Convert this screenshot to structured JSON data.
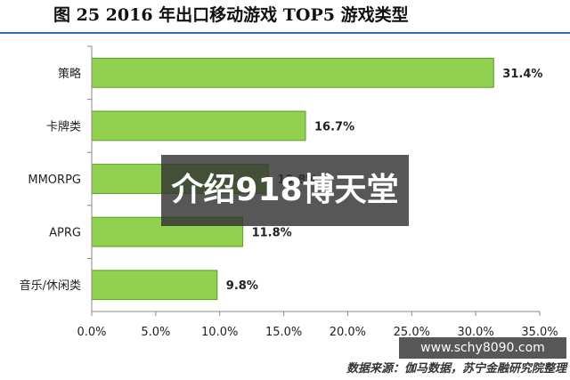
{
  "title": "图 25  2016 年出口移动游戏 TOP5 游戏类型",
  "watermark": "介绍918博天堂",
  "site_watermark": "www.schy8090.com",
  "source": "数据来源：伽马数据，苏宁金融研究院整理",
  "colors": {
    "bar_fill": "#92d050",
    "bar_stroke": "#5a9e22",
    "axis": "#888888",
    "title_rule": "#2f6fb0"
  },
  "chart_data": {
    "type": "bar",
    "orientation": "horizontal",
    "title": "图 25  2016 年出口移动游戏 TOP5 游戏类型",
    "categories": [
      "策略",
      "卡牌类",
      "MMORPG",
      "APRG",
      "音乐/休闲类"
    ],
    "values": [
      31.4,
      16.7,
      13.8,
      11.8,
      9.8
    ],
    "value_labels": [
      "31.4%",
      "16.7%",
      "13.8%",
      "11.8%",
      "9.8%"
    ],
    "xlim": [
      0,
      35
    ],
    "xticks": [
      0,
      5,
      10,
      15,
      20,
      25,
      30,
      35
    ],
    "xtick_labels": [
      "0.0%",
      "5.0%",
      "10.0%",
      "15.0%",
      "20.0%",
      "25.0%",
      "30.0%",
      "35.0%"
    ],
    "grid": false,
    "legend": "none"
  }
}
